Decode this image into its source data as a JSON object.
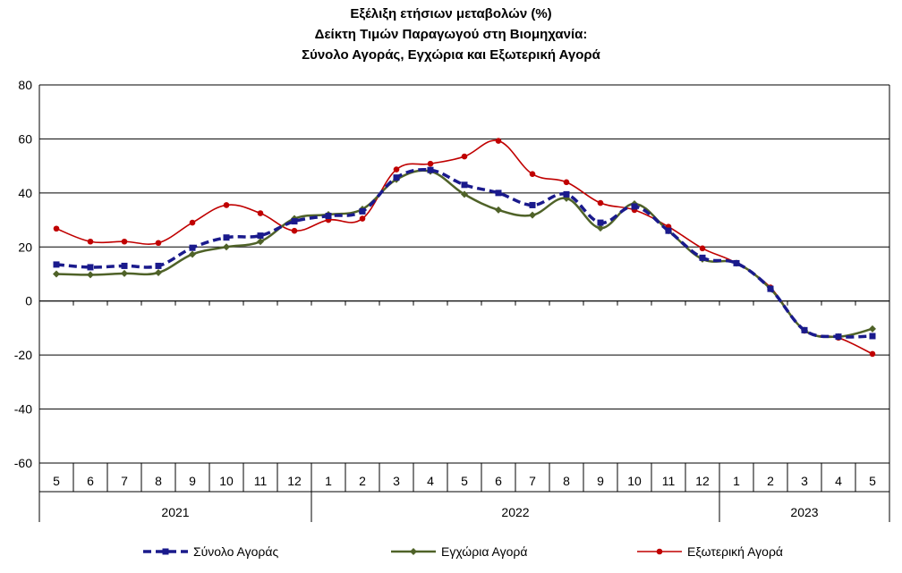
{
  "chart_data": {
    "type": "line",
    "title_lines": [
      "Εξέλιξη ετήσιων μεταβολών (%)",
      "Δείκτη Τιμών Παραγωγού στη Βιομηχανία:",
      "Σύνολο Αγοράς, Εγχώρια και Εξωτερική Αγορά"
    ],
    "ylim": [
      -60,
      80
    ],
    "yticks": [
      "80",
      "60",
      "40",
      "20",
      "0",
      "-20",
      "-40",
      "-60"
    ],
    "ytick_values": [
      80,
      60,
      40,
      20,
      0,
      -20,
      -40,
      -60
    ],
    "categories": [
      "5",
      "6",
      "7",
      "8",
      "9",
      "10",
      "11",
      "12",
      "1",
      "2",
      "3",
      "4",
      "5",
      "6",
      "7",
      "8",
      "9",
      "10",
      "11",
      "12",
      "1",
      "2",
      "3",
      "4",
      "5"
    ],
    "year_groups": [
      {
        "label": "2021",
        "start": 0,
        "end": 8
      },
      {
        "label": "2022",
        "start": 8,
        "end": 20
      },
      {
        "label": "2023",
        "start": 20,
        "end": 25
      }
    ],
    "grid": true,
    "legend_position": "bottom",
    "series": [
      {
        "name": "Σύνολο Αγοράς",
        "color": "#1a1a8c",
        "style": "dashed-square",
        "values": [
          13.5,
          12.5,
          13.0,
          13.0,
          19.7,
          23.5,
          24.2,
          29.5,
          31.5,
          33.2,
          45.7,
          48.5,
          43.0,
          40.0,
          35.5,
          39.5,
          29.0,
          35.0,
          26.0,
          16.0,
          14.0,
          4.5,
          -10.8,
          -13.2,
          -13.0
        ]
      },
      {
        "name": "Εγχώρια Αγορά",
        "color": "#4f6228",
        "style": "solid-diamond",
        "values": [
          10.0,
          9.7,
          10.2,
          10.5,
          17.3,
          20.0,
          22.0,
          30.5,
          32.0,
          34.0,
          45.0,
          48.0,
          39.5,
          33.7,
          31.8,
          38.0,
          27.0,
          36.0,
          26.0,
          15.5,
          14.0,
          4.5,
          -10.8,
          -13.2,
          -10.3
        ]
      },
      {
        "name": "Εξωτερική Αγορά",
        "color": "#c00000",
        "style": "solid-circle",
        "values": [
          26.8,
          22.0,
          22.0,
          21.5,
          29.0,
          35.5,
          32.5,
          26.0,
          30.0,
          30.5,
          48.7,
          50.8,
          53.5,
          59.3,
          47.0,
          44.0,
          36.3,
          33.7,
          27.5,
          19.5,
          14.0,
          5.0,
          -11.0,
          -13.6,
          -19.6
        ]
      }
    ]
  }
}
